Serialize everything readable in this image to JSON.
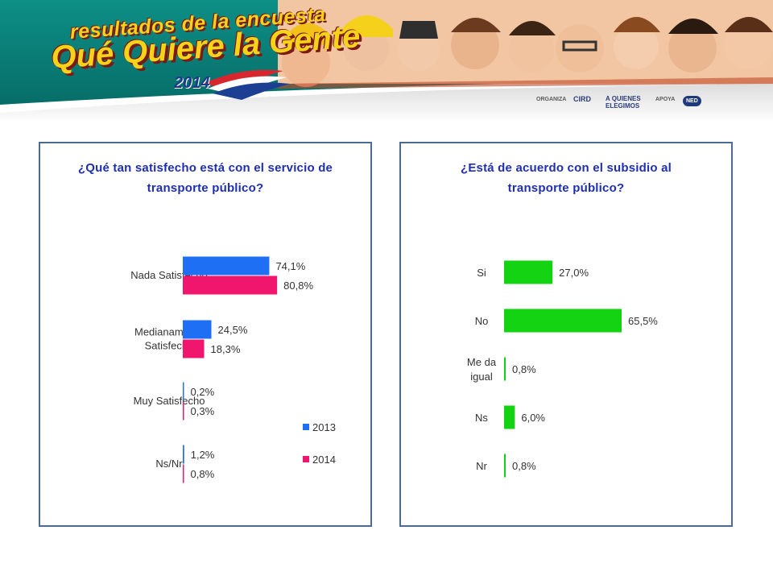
{
  "banner": {
    "line1": "resultados de la encuesta",
    "line2": "Qué Quiere la Gente",
    "year": "2014",
    "organiza_label": "ORGANIZA",
    "apoya_label": "APOYA",
    "cird_logo": "CIRD",
    "aquienes_logo": "A QUIENES ELEGIMOS",
    "ned_logo": "NED"
  },
  "colors": {
    "series_2013": "#1f6ff5",
    "series_2014": "#f0166e",
    "bar_green": "#13d313",
    "title_blue": "#1f2fb0",
    "panel_border": "#4a6c92"
  },
  "chart_data": [
    {
      "type": "bar",
      "orientation": "horizontal",
      "title_lines": [
        "¿Qué tan satisfecho está con el servicio de",
        "transporte público?"
      ],
      "categories": [
        [
          "Nada Satisfecho"
        ],
        [
          "Medianamente",
          "Satisfecho"
        ],
        [
          "Muy Satisfecho"
        ],
        [
          "Ns/Nr"
        ]
      ],
      "series": [
        {
          "name": "2013",
          "values": [
            74.1,
            24.5,
            0.2,
            1.2
          ],
          "labels": [
            "74,1%",
            "24,5%",
            "0,2%",
            "1,2%"
          ]
        },
        {
          "name": "2014",
          "values": [
            80.8,
            18.3,
            0.3,
            0.8
          ],
          "labels": [
            "80,8%",
            "18,3%",
            "0,3%",
            "0,8%"
          ]
        }
      ],
      "legend": [
        "2013",
        "2014"
      ],
      "legend_position": "bottom-right",
      "xlim": [
        0,
        100
      ],
      "grid": false
    },
    {
      "type": "bar",
      "orientation": "horizontal",
      "title_lines": [
        "¿Está de acuerdo con el subsidio al",
        "transporte público?"
      ],
      "categories": [
        [
          "Si"
        ],
        [
          "No"
        ],
        [
          "Me da",
          "igual"
        ],
        [
          "Ns"
        ],
        [
          "Nr"
        ]
      ],
      "series": [
        {
          "values": [
            27.0,
            65.5,
            0.8,
            6.0,
            0.8
          ],
          "labels": [
            "27,0%",
            "65,5%",
            "0,8%",
            "6,0%",
            "0,8%"
          ]
        }
      ],
      "xlim": [
        0,
        100
      ],
      "grid": false
    }
  ]
}
